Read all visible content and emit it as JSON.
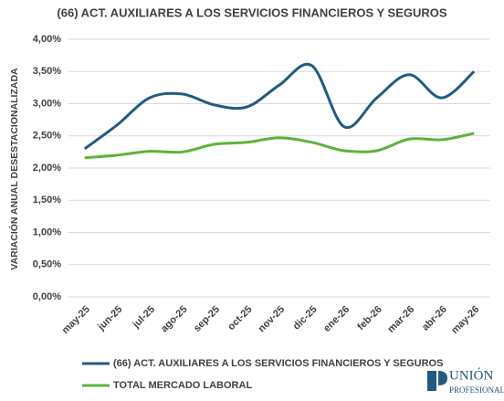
{
  "chart_data": {
    "type": "line",
    "title": "(66) ACT. AUXILIARES A LOS SERVICIOS FINANCIEROS Y SEGUROS",
    "y_label": "VARIACIÓN ANUAL DESESTACIONALIZADA",
    "categories": [
      "may-25",
      "jun-25",
      "jul-25",
      "ago-25",
      "sep-25",
      "oct-25",
      "nov-25",
      "dic-25",
      "ene-26",
      "feb-26",
      "mar-26",
      "abr-26",
      "may-26"
    ],
    "series": [
      {
        "name": "(66) ACT. AUXILIARES A LOS SERVICIOS FINANCIEROS Y SEGUROS",
        "color": "#215b7f",
        "values": [
          2.3,
          2.67,
          3.09,
          3.15,
          2.98,
          2.95,
          3.29,
          3.59,
          2.64,
          3.09,
          3.45,
          3.09,
          3.5
        ]
      },
      {
        "name": "TOTAL MERCADO LABORAL",
        "color": "#5db33a",
        "values": [
          2.16,
          2.2,
          2.26,
          2.25,
          2.37,
          2.4,
          2.47,
          2.4,
          2.27,
          2.27,
          2.45,
          2.44,
          2.54
        ]
      }
    ],
    "ylim": [
      0,
      4
    ],
    "yticks": [
      {
        "value": 0,
        "label": "0,00%"
      },
      {
        "value": 0.5,
        "label": "0,50%"
      },
      {
        "value": 1,
        "label": "1,00%"
      },
      {
        "value": 1.5,
        "label": "1,50%"
      },
      {
        "value": 2,
        "label": "2,00%"
      },
      {
        "value": 2.5,
        "label": "2,50%"
      },
      {
        "value": 3,
        "label": "3,00%"
      },
      {
        "value": 3.5,
        "label": "3,50%"
      },
      {
        "value": 4,
        "label": "4,00%"
      }
    ],
    "grid": true,
    "smooth": true,
    "logo": {
      "line1": "UNIÓN",
      "line2": "PROFESIONAL"
    }
  }
}
